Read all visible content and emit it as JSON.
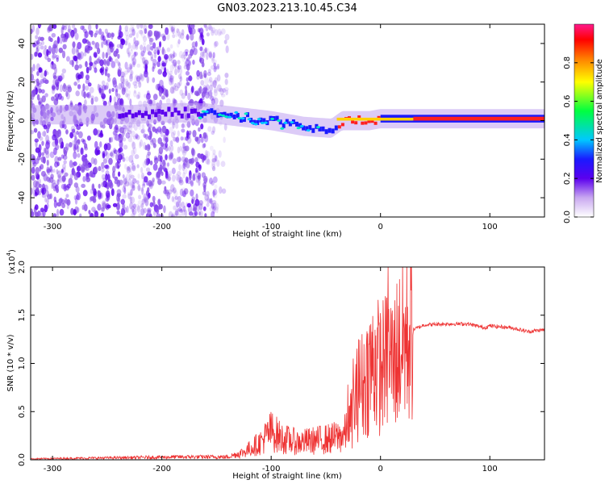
{
  "title": "GN03.2023.213.10.45.C34",
  "chart_data": [
    {
      "type": "heatmap",
      "xlabel": "Height of straight line (km)",
      "ylabel": "Frequency (Hz)",
      "xlim": [
        -320,
        150
      ],
      "ylim": [
        -50,
        50
      ],
      "xticks": [
        -300,
        -200,
        -100,
        0,
        100
      ],
      "yticks": [
        -40,
        -20,
        0,
        20,
        40
      ],
      "colorbar": {
        "label": "Normalized spectral amplitude",
        "range": [
          0,
          1
        ],
        "ticks": [
          0.0,
          0.2,
          0.4,
          0.6,
          0.8
        ],
        "colors": [
          "#ffffff",
          "#c9a8f0",
          "#5b00ee",
          "#1a1aff",
          "#00c8ff",
          "#00ff40",
          "#ffff00",
          "#ff8000",
          "#ff0000",
          "#ff1a8c"
        ]
      },
      "ridge": [
        {
          "x": -230,
          "y": 3
        },
        {
          "x": -200,
          "y": 4
        },
        {
          "x": -160,
          "y": 4
        },
        {
          "x": -130,
          "y": 2
        },
        {
          "x": -100,
          "y": 0
        },
        {
          "x": -70,
          "y": -3
        },
        {
          "x": -45,
          "y": -4
        },
        {
          "x": -35,
          "y": 0
        },
        {
          "x": -10,
          "y": 0
        },
        {
          "x": 0,
          "y": 1
        },
        {
          "x": 40,
          "y": 1
        },
        {
          "x": 80,
          "y": 1
        },
        {
          "x": 150,
          "y": 1
        }
      ]
    },
    {
      "type": "line",
      "xlabel": "Height of straight line (km)",
      "ylabel": "SNR (10 * v/v)",
      "yscale_label": "(x10",
      "yscale_exp": "4",
      "yscale_close": ")",
      "xlim": [
        -320,
        150
      ],
      "ylim": [
        0,
        2.0
      ],
      "xticks": [
        -300,
        -200,
        -100,
        0,
        100
      ],
      "yticks": [
        0.0,
        0.5,
        1.0,
        1.5,
        2.0
      ],
      "color": "#ee3333",
      "envelope": [
        {
          "x": -320,
          "y": 0.01
        },
        {
          "x": -250,
          "y": 0.02
        },
        {
          "x": -180,
          "y": 0.03
        },
        {
          "x": -140,
          "y": 0.03
        },
        {
          "x": -125,
          "y": 0.08
        },
        {
          "x": -110,
          "y": 0.18
        },
        {
          "x": -100,
          "y": 0.3
        },
        {
          "x": -90,
          "y": 0.22
        },
        {
          "x": -75,
          "y": 0.18
        },
        {
          "x": -60,
          "y": 0.2
        },
        {
          "x": -45,
          "y": 0.22
        },
        {
          "x": -35,
          "y": 0.25
        },
        {
          "x": -30,
          "y": 0.3
        },
        {
          "x": -25,
          "y": 0.5
        },
        {
          "x": -20,
          "y": 0.75
        },
        {
          "x": -15,
          "y": 0.8
        },
        {
          "x": -10,
          "y": 0.95
        },
        {
          "x": -5,
          "y": 1.0
        },
        {
          "x": 0,
          "y": 0.95
        },
        {
          "x": 5,
          "y": 1.0
        },
        {
          "x": 10,
          "y": 1.05
        },
        {
          "x": 20,
          "y": 1.2
        },
        {
          "x": 30,
          "y": 1.35
        },
        {
          "x": 40,
          "y": 1.4
        },
        {
          "x": 60,
          "y": 1.41
        },
        {
          "x": 80,
          "y": 1.41
        },
        {
          "x": 95,
          "y": 1.37
        },
        {
          "x": 100,
          "y": 1.39
        },
        {
          "x": 120,
          "y": 1.37
        },
        {
          "x": 135,
          "y": 1.33
        },
        {
          "x": 150,
          "y": 1.35
        }
      ],
      "peaks": [
        {
          "x": -30,
          "y": 0.78
        },
        {
          "x": -25,
          "y": 1.05
        },
        {
          "x": -20,
          "y": 1.25
        },
        {
          "x": -5,
          "y": 1.35
        },
        {
          "x": 4,
          "y": 1.2
        },
        {
          "x": 7,
          "y": 2.0
        },
        {
          "x": 12,
          "y": 1.45
        }
      ]
    }
  ]
}
